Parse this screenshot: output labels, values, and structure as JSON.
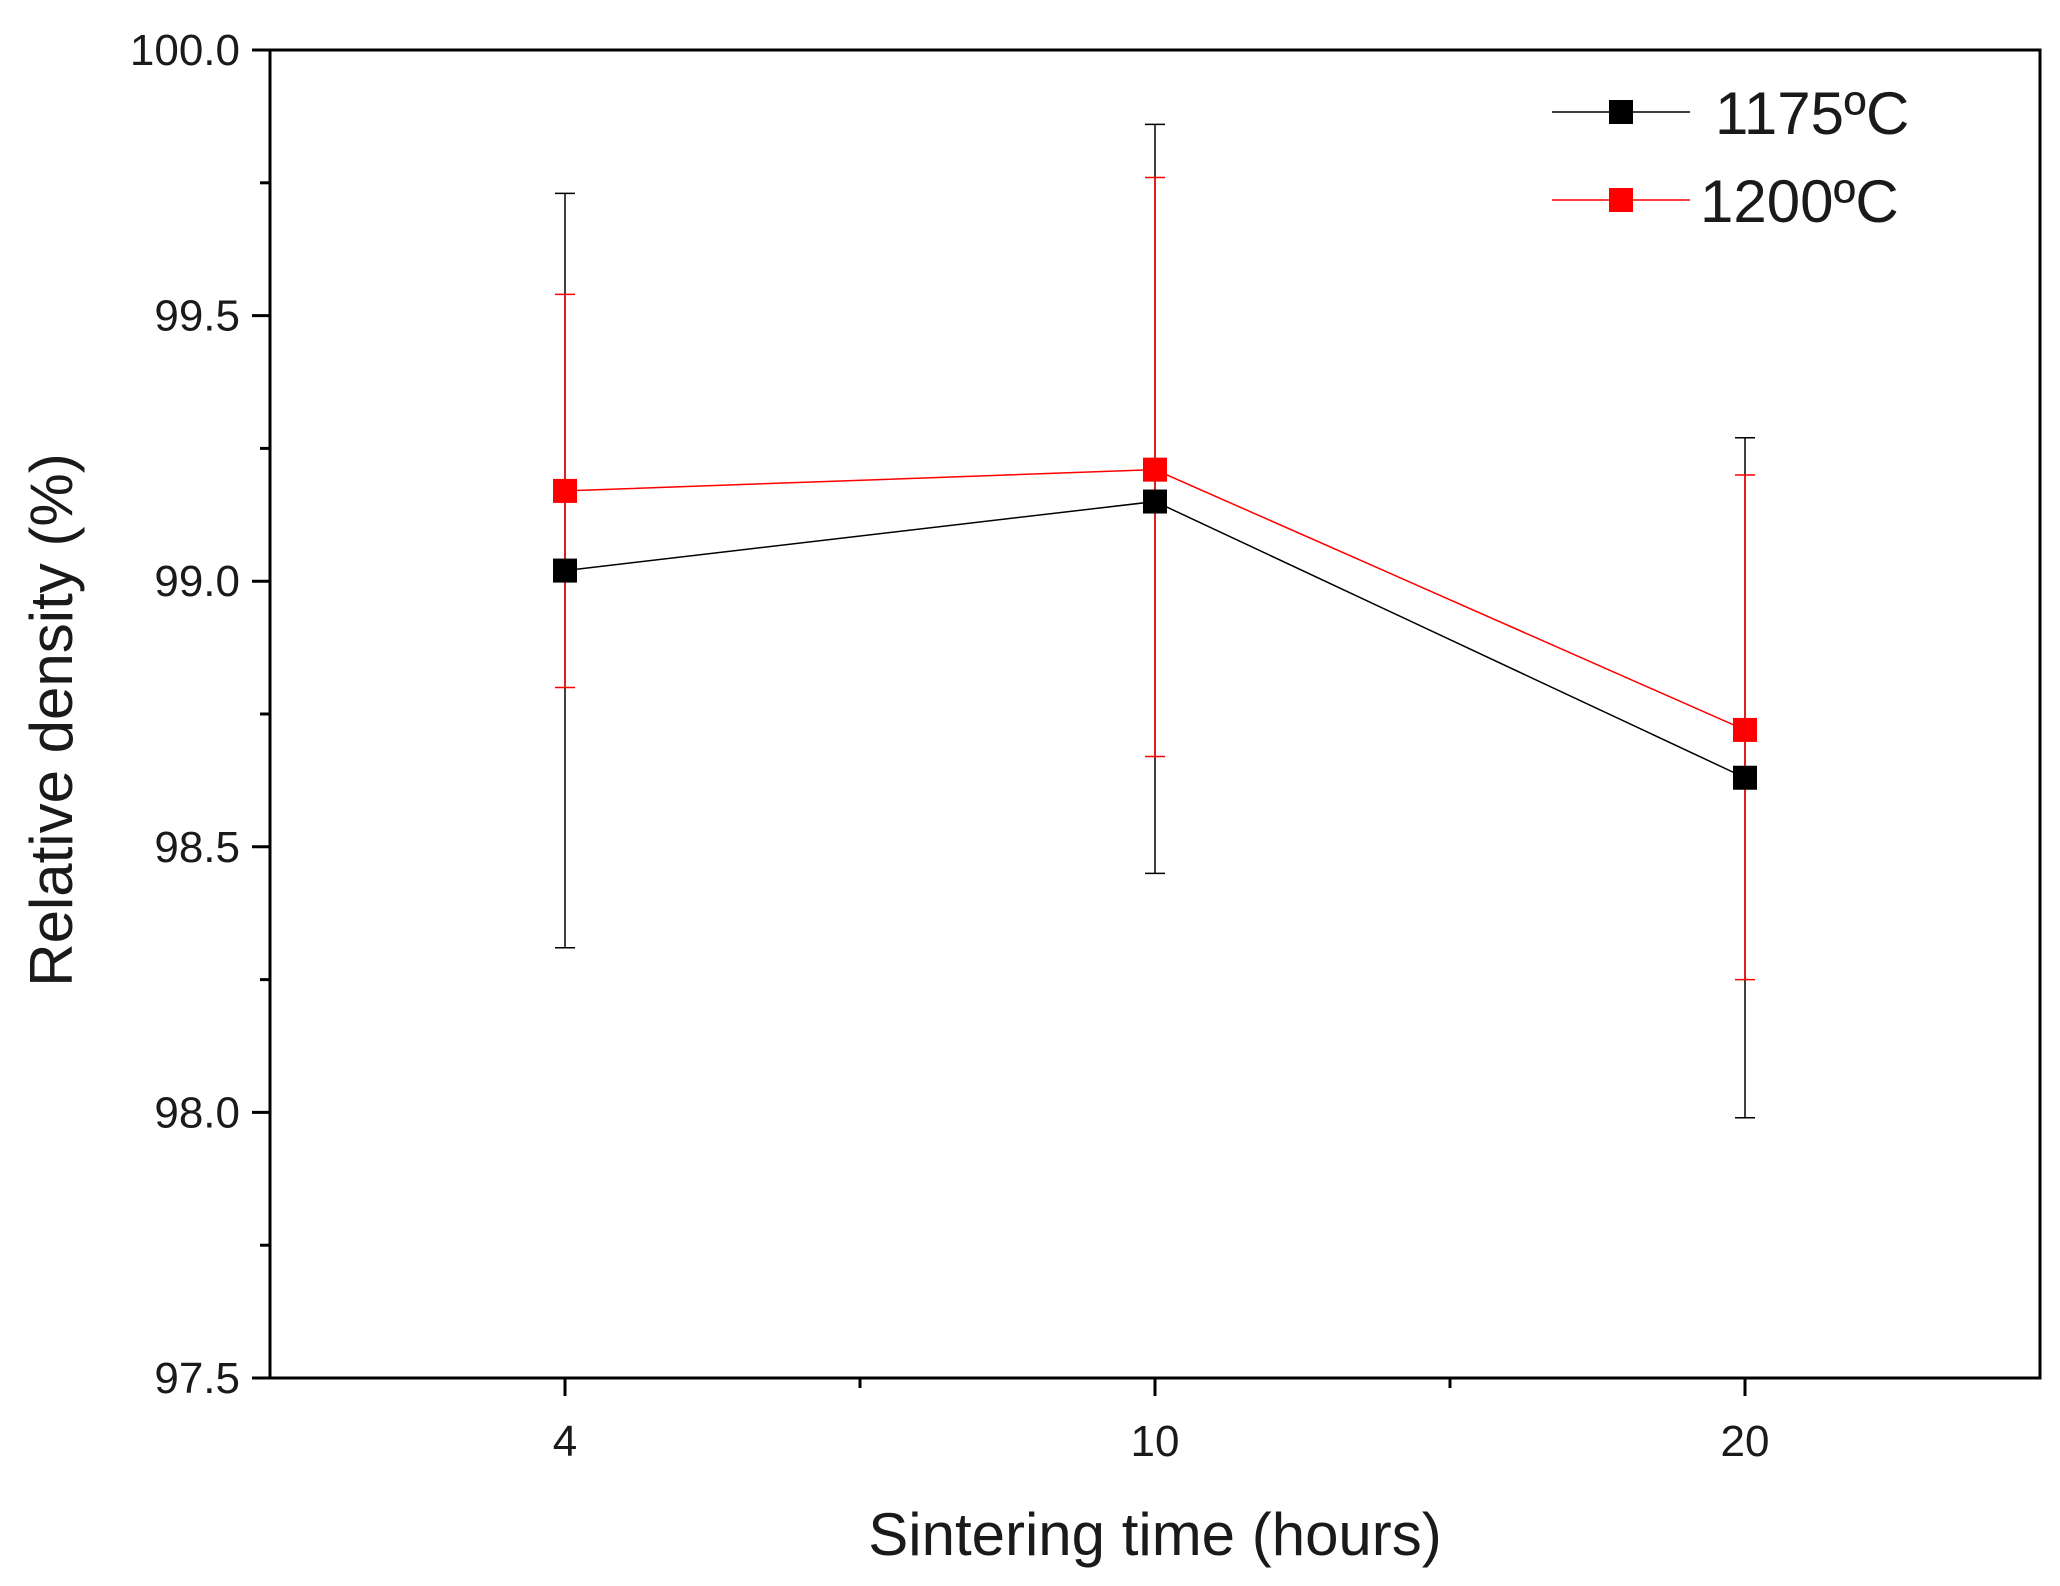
{
  "chart_data": {
    "type": "line",
    "title": "",
    "xlabel": "Sintering time (hours)",
    "ylabel": "Relative density (%)",
    "categories": [
      "4",
      "10",
      "20"
    ],
    "ylim": [
      97.5,
      100.0
    ],
    "yticks": [
      "97.5",
      "98.0",
      "98.5",
      "99.0",
      "99.5",
      "100.0"
    ],
    "grid": false,
    "legend_position": "top-right",
    "series": [
      {
        "name": "1175ºC",
        "color": "#000000",
        "marker": "square",
        "values": [
          99.02,
          99.15,
          98.63
        ],
        "error_low": [
          98.31,
          98.45,
          97.99
        ],
        "error_high": [
          99.73,
          99.86,
          99.27
        ]
      },
      {
        "name": "1200ºC",
        "color": "#ff0000",
        "marker": "square",
        "values": [
          99.17,
          99.21,
          98.72
        ],
        "error_low": [
          98.8,
          98.67,
          98.25
        ],
        "error_high": [
          99.54,
          99.76,
          99.2
        ]
      }
    ]
  }
}
